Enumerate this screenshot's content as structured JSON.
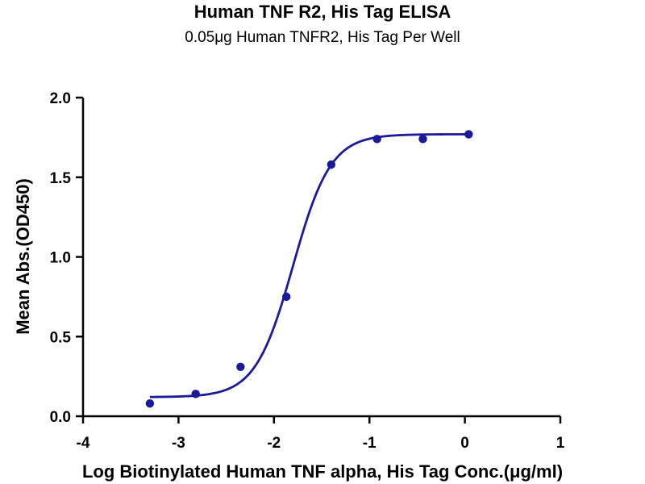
{
  "chart_data": {
    "type": "scatter",
    "title": "Human TNF R2, His Tag ELISA",
    "subtitle": "0.05μg Human TNFR2, His Tag Per Well",
    "xlabel": "Log Biotinylated Human TNF alpha, His Tag Conc.(μg/ml)",
    "ylabel": "Mean Abs.(OD450)",
    "xlim": [
      -4,
      1
    ],
    "ylim": [
      0,
      2
    ],
    "x_ticks": [
      -4,
      -3,
      -2,
      -1,
      0,
      1
    ],
    "x_tick_labels": [
      "-4",
      "-3",
      "-2",
      "-1",
      "0",
      "1"
    ],
    "y_ticks": [
      0,
      0.5,
      1,
      1.5,
      2
    ],
    "y_tick_labels": [
      "0.0",
      "0.5",
      "1.0",
      "1.5",
      "2.0"
    ],
    "grid": false,
    "legend": "none",
    "series": [
      {
        "x": [
          -3.3,
          -2.82,
          -2.35,
          -1.87,
          -1.4,
          -0.92,
          -0.44,
          0.04
        ],
        "y": [
          0.08,
          0.14,
          0.31,
          0.75,
          1.58,
          1.74,
          1.74,
          1.77
        ],
        "color": "#1a1a9a",
        "fit": {
          "model": "4PL",
          "bottom": 0.12,
          "top": 1.77,
          "log_ec50": -1.8,
          "hill_slope": 2.2,
          "range": [
            -3.3,
            0.04
          ]
        }
      }
    ]
  }
}
